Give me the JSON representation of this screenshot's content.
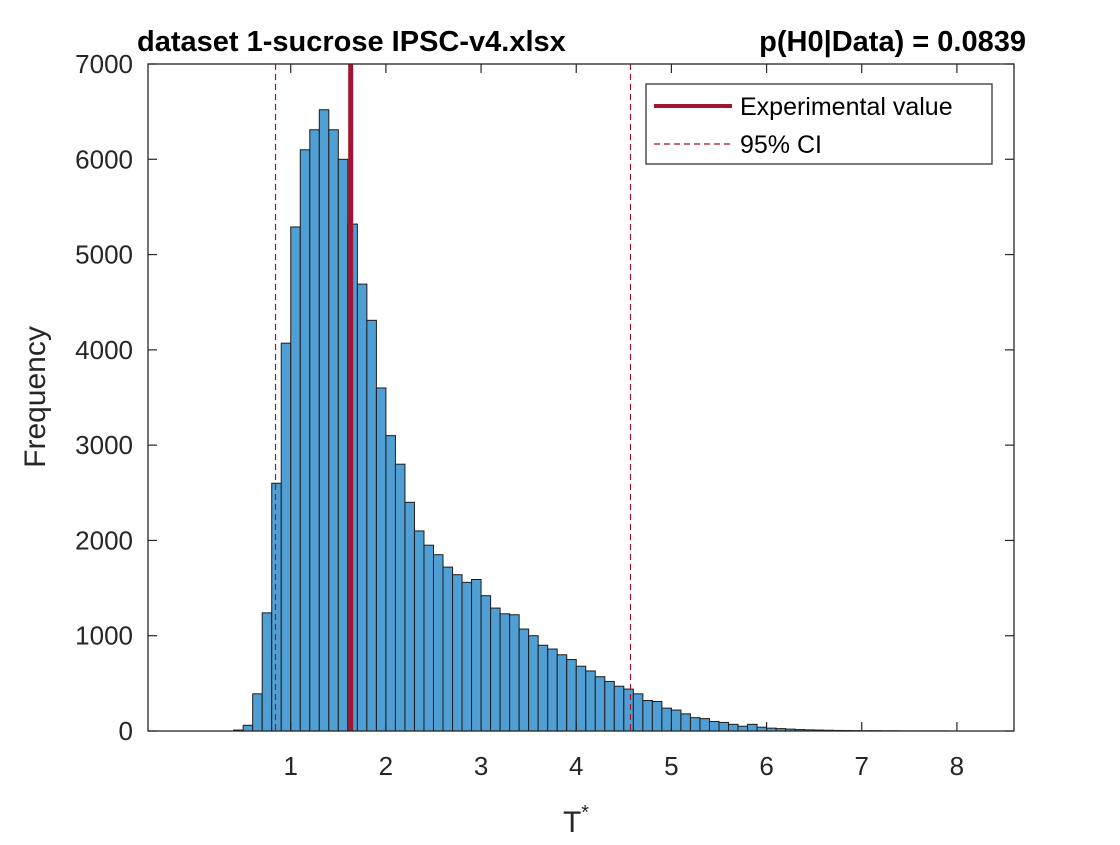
{
  "chart_data": {
    "type": "bar",
    "title_left": "dataset 1-sucrose IPSC-v4.xlsx",
    "title_right": "p(H0|Data) = 0.0839",
    "xlabel": "T",
    "xlabel_sup": "*",
    "ylabel": "Frequency",
    "xlim": [
      -0.5,
      8.6
    ],
    "ylim": [
      0,
      7000
    ],
    "xticks": [
      1,
      2,
      3,
      4,
      5,
      6,
      7,
      8
    ],
    "yticks": [
      0,
      1000,
      2000,
      3000,
      4000,
      5000,
      6000,
      7000
    ],
    "bin_width": 0.1,
    "bin_starts": [
      0.4,
      0.5,
      0.6,
      0.7,
      0.8,
      0.9,
      1.0,
      1.1,
      1.2,
      1.3,
      1.4,
      1.5,
      1.6,
      1.7,
      1.8,
      1.9,
      2.0,
      2.1,
      2.2,
      2.3,
      2.4,
      2.5,
      2.6,
      2.7,
      2.8,
      2.9,
      3.0,
      3.1,
      3.2,
      3.3,
      3.4,
      3.5,
      3.6,
      3.7,
      3.8,
      3.9,
      4.0,
      4.1,
      4.2,
      4.3,
      4.4,
      4.5,
      4.6,
      4.7,
      4.8,
      4.9,
      5.0,
      5.1,
      5.2,
      5.3,
      5.4,
      5.5,
      5.6,
      5.7,
      5.8,
      5.9,
      6.0,
      6.1,
      6.2,
      6.3,
      6.4,
      6.5,
      6.6,
      6.7,
      6.8,
      6.9,
      7.0,
      7.1,
      7.2,
      7.3,
      7.4,
      7.5,
      7.6,
      7.7,
      7.8,
      7.9,
      8.0,
      8.1
    ],
    "frequencies": [
      10,
      60,
      390,
      1240,
      2600,
      4070,
      5290,
      6100,
      6310,
      6520,
      6310,
      6000,
      5320,
      4690,
      4310,
      3600,
      3100,
      2800,
      2400,
      2100,
      1950,
      1850,
      1720,
      1640,
      1560,
      1590,
      1420,
      1290,
      1230,
      1220,
      1070,
      1000,
      900,
      860,
      800,
      750,
      680,
      630,
      570,
      520,
      470,
      440,
      390,
      320,
      310,
      240,
      220,
      180,
      140,
      130,
      100,
      90,
      70,
      50,
      70,
      40,
      30,
      25,
      20,
      15,
      12,
      10,
      8,
      6,
      5,
      4,
      3,
      3,
      2,
      2,
      1,
      1,
      1,
      1,
      1,
      0,
      0,
      0
    ],
    "experimental_value": 1.63,
    "ci_95": [
      0.84,
      4.57
    ],
    "legend": {
      "position": "top-right",
      "entries": [
        "Experimental value",
        "95% CI"
      ]
    },
    "colors": {
      "bars": "#4f9fd4",
      "bar_edge": "#1c1c1c",
      "experimental_line": "#a2142f",
      "ci_line": "#a2142f",
      "axes": "#262626"
    },
    "grid": false
  }
}
